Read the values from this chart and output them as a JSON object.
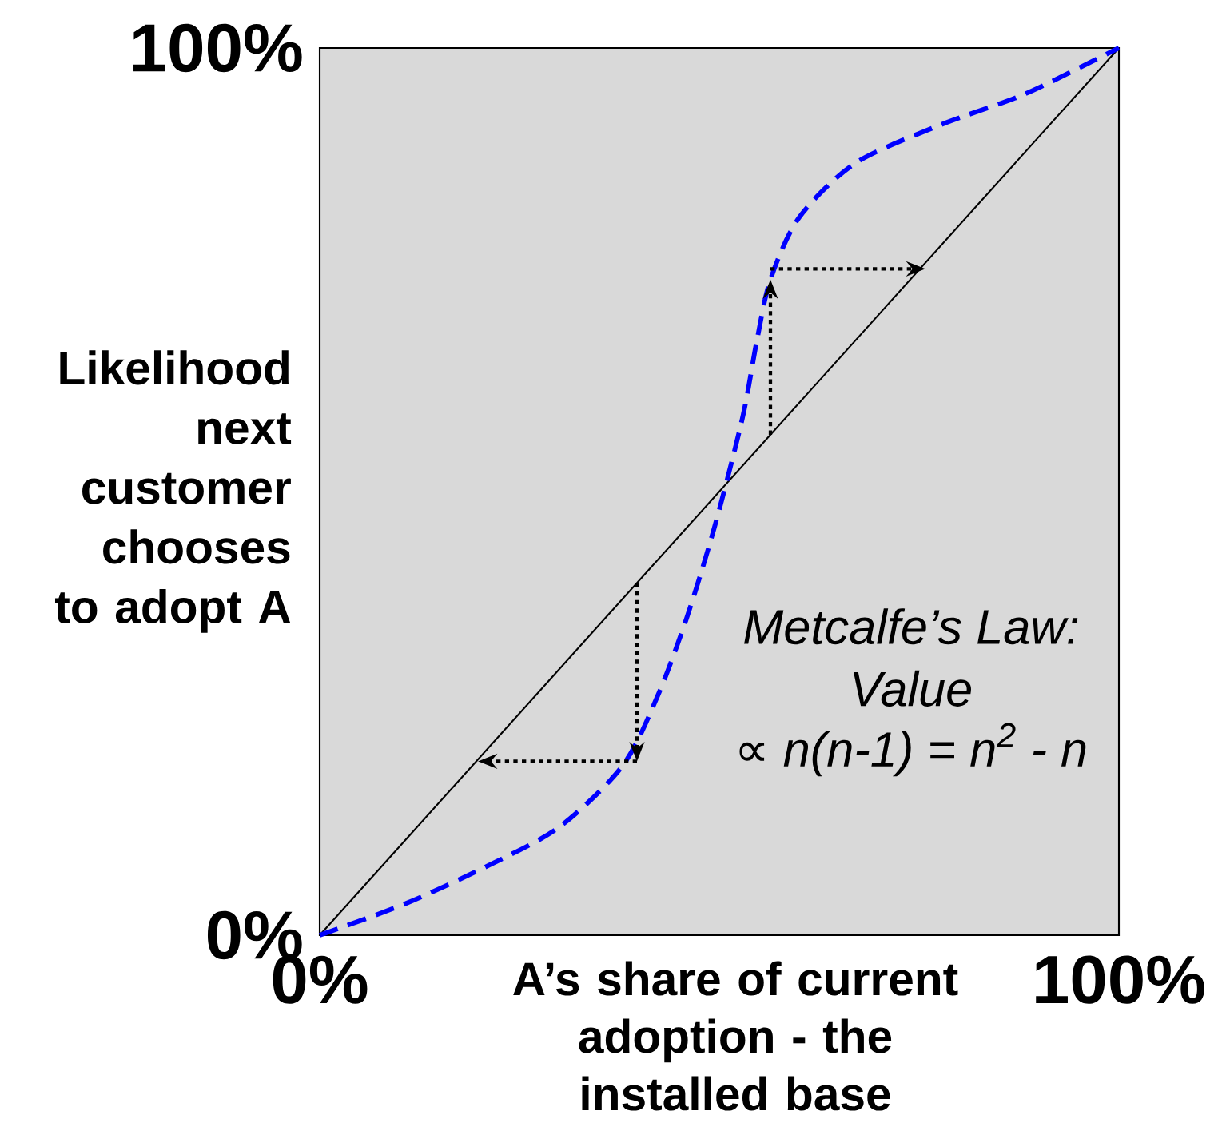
{
  "chart_data": {
    "type": "line",
    "xlabel": "A’s share of current adoption - the installed base",
    "ylabel": "Likelihood next customer chooses to adopt A",
    "xlim": [
      0,
      100
    ],
    "ylim": [
      0,
      100
    ],
    "xticks": [
      {
        "value": 0,
        "label": "0%"
      },
      {
        "value": 100,
        "label": "100%"
      }
    ],
    "yticks": [
      {
        "value": 0,
        "label": "0%"
      },
      {
        "value": 100,
        "label": "100%"
      }
    ],
    "annotations": [
      "Metcalfe’s Law:",
      "Value",
      "∝ n(n-1) = n$^{2}$ - n"
    ],
    "series": [
      {
        "color": "#000000",
        "line_style": "solid",
        "x": [
          0,
          100
        ],
        "values": [
          0,
          100
        ]
      },
      {
        "color": "#0000ff",
        "line_style": "dashed",
        "x": [
          0,
          10.6,
          21,
          30,
          37.9,
          42.3,
          45.9,
          49.4,
          52.9,
          54.7,
          56.4,
          60,
          67,
          77.6,
          88.2,
          100
        ],
        "values": [
          0,
          3.5,
          7.8,
          12.2,
          19.1,
          27,
          35.7,
          46,
          58.3,
          67,
          73.9,
          80.9,
          87,
          91.3,
          94.8,
          100
        ]
      }
    ]
  }
}
